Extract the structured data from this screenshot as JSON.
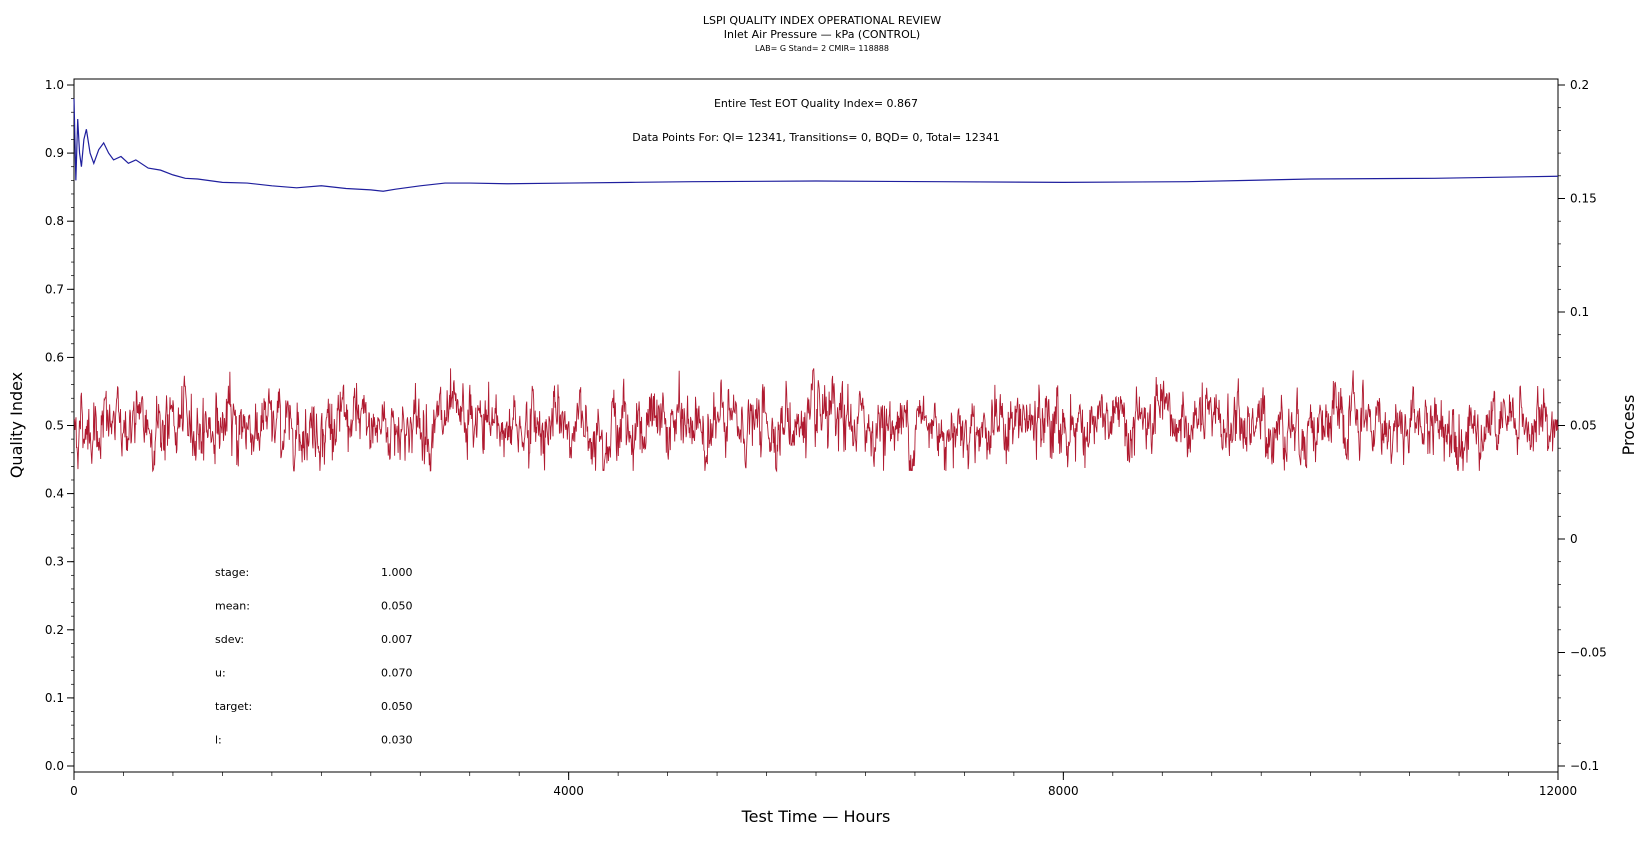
{
  "chart_data": {
    "type": "line",
    "title": "LSPI QUALITY INDEX OPERATIONAL REVIEW",
    "subtitle": "Inlet Air Pressure — kPa (CONTROL)",
    "subtitle2": "LAB= G Stand= 2 CMIR= 118888",
    "xlabel": "Test Time — Hours",
    "ylabel_left": "Quality Index",
    "ylabel_right": "Process",
    "xlim": [
      0,
      12000
    ],
    "ylim_left": [
      0.0,
      1.0
    ],
    "ylim_right": [
      -0.1,
      0.2
    ],
    "x_ticks": [
      "0",
      "4000",
      "8000",
      "12000"
    ],
    "y_left_ticks": [
      "0.0",
      "0.1",
      "0.2",
      "0.3",
      "0.4",
      "0.5",
      "0.6",
      "0.7",
      "0.8",
      "0.9",
      "1.0"
    ],
    "y_right_ticks": [
      "−0.1",
      "−0.05",
      "0",
      "0.05",
      "0.1",
      "0.15",
      "0.2"
    ],
    "annotations": {
      "quality_index_line": "Entire Test EOT Quality Index=   0.867",
      "data_points_line": "Data Points For: QI= 12341, Transitions=     0, BQD=     0, Total= 12341"
    },
    "stats": [
      {
        "label": "stage:",
        "value": "1.000"
      },
      {
        "label": "mean:",
        "value": "0.050"
      },
      {
        "label": "sdev:",
        "value": "0.007"
      },
      {
        "label": "u:",
        "value": "0.070"
      },
      {
        "label": "target:",
        "value": "0.050"
      },
      {
        "label": "l:",
        "value": "0.030"
      }
    ],
    "series": [
      {
        "axis": "left",
        "color": "#1f1f9e",
        "x": [
          0,
          15,
          30,
          45,
          60,
          80,
          100,
          130,
          160,
          200,
          240,
          280,
          320,
          380,
          440,
          500,
          600,
          700,
          800,
          900,
          1000,
          1200,
          1400,
          1600,
          1800,
          2000,
          2200,
          2400,
          2500,
          2600,
          2800,
          3000,
          3200,
          3500,
          4000,
          4500,
          5000,
          6000,
          7000,
          8000,
          9000,
          9500,
          10000,
          11000,
          12000
        ],
        "y": [
          0.98,
          0.86,
          0.95,
          0.9,
          0.88,
          0.92,
          0.935,
          0.9,
          0.885,
          0.905,
          0.915,
          0.9,
          0.89,
          0.895,
          0.885,
          0.89,
          0.878,
          0.875,
          0.868,
          0.863,
          0.862,
          0.857,
          0.856,
          0.852,
          0.849,
          0.852,
          0.848,
          0.846,
          0.844,
          0.847,
          0.852,
          0.856,
          0.856,
          0.855,
          0.856,
          0.857,
          0.858,
          0.859,
          0.858,
          0.857,
          0.858,
          0.86,
          0.862,
          0.863,
          0.866
        ]
      },
      {
        "axis": "right",
        "color": "#b01a30",
        "mean": 0.05,
        "sdev": 0.007,
        "x_range": [
          0,
          12000
        ],
        "points": 12341
      }
    ]
  }
}
